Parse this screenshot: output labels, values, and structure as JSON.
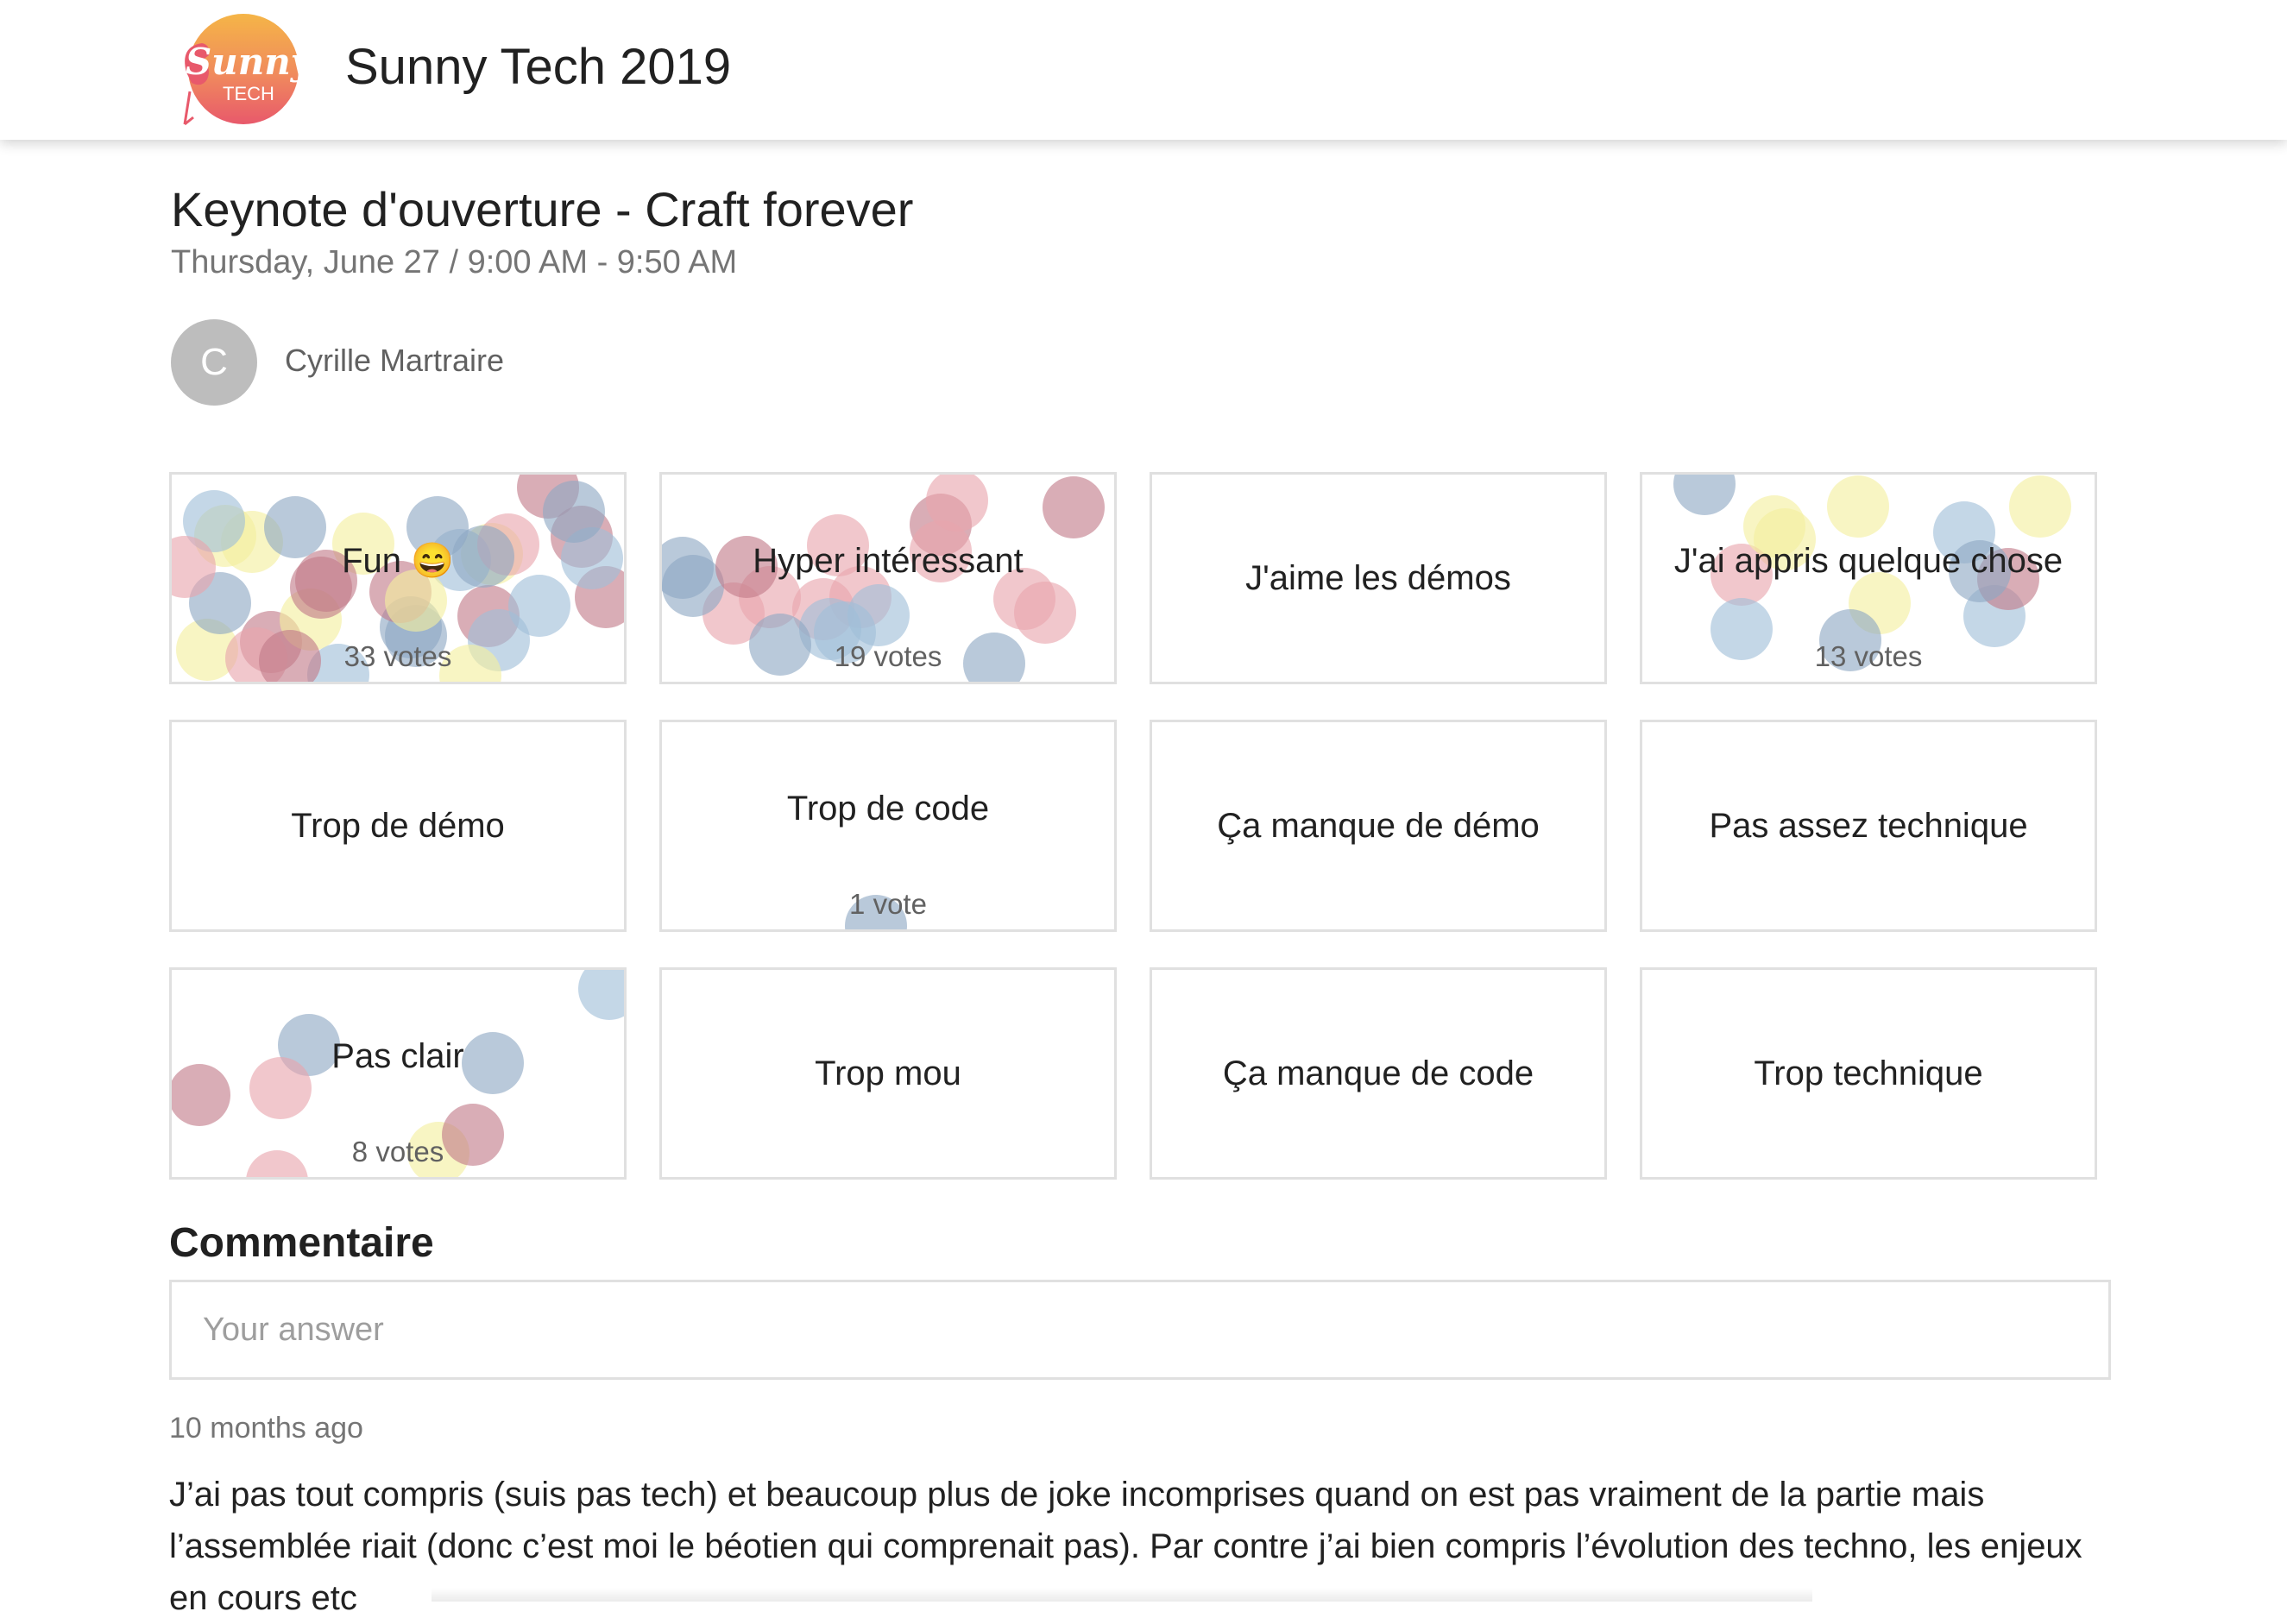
{
  "app": {
    "logo_text": "Sunny",
    "logo_subtext": "TECH",
    "title": "Sunny Tech 2019"
  },
  "talk": {
    "title": "Keynote d'ouverture - Craft forever",
    "time": "Thursday, June 27 / 9:00 AM - 9:50 AM"
  },
  "speaker": {
    "initial": "C",
    "name": "Cyrille Martraire"
  },
  "feedback": [
    {
      "label": "Fun 😄",
      "votes": "33 votes",
      "vote_count": 33
    },
    {
      "label": "Hyper intéressant",
      "votes": "19 votes",
      "vote_count": 19
    },
    {
      "label": "J'aime les démos",
      "votes": "",
      "vote_count": 0
    },
    {
      "label": "J'ai appris quelque chose",
      "votes": "13 votes",
      "vote_count": 13
    },
    {
      "label": "Trop de démo",
      "votes": "",
      "vote_count": 0
    },
    {
      "label": "Trop de code",
      "votes": "1 vote",
      "vote_count": 1
    },
    {
      "label": "Ça manque de démo",
      "votes": "",
      "vote_count": 0
    },
    {
      "label": "Pas assez technique",
      "votes": "",
      "vote_count": 0
    },
    {
      "label": "Pas clair",
      "votes": "8 votes",
      "vote_count": 8
    },
    {
      "label": "Trop mou",
      "votes": "",
      "vote_count": 0
    },
    {
      "label": "Ça manque de code",
      "votes": "",
      "vote_count": 0
    },
    {
      "label": "Trop technique",
      "votes": "",
      "vote_count": 0
    }
  ],
  "dot_colors": [
    "#c27b89",
    "#e8a5ad",
    "#9fbfd9",
    "#f4ef9e",
    "#8ea8c4"
  ],
  "comment": {
    "heading": "Commentaire",
    "placeholder": "Your answer",
    "time": "10 months ago",
    "text": "J’ai pas tout compris (suis pas tech) et beaucoup plus de joke incomprises quand on est pas vraiment de la partie mais l’assemblée riait (donc c’est moi le béotien qui comprenait pas). Par contre j’ai bien compris l’évolution des techno, les enjeux en cours etc"
  }
}
